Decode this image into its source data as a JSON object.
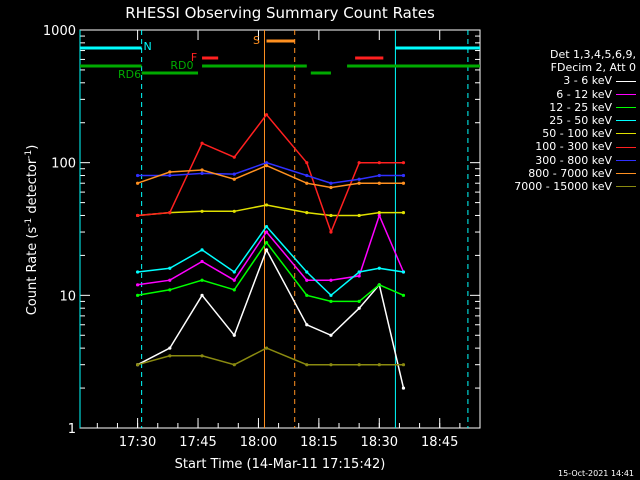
{
  "chart_data": {
    "type": "line",
    "title": "RHESSI Observing Summary Count Rates",
    "xlabel": "Start Time (14-Mar-11 17:15:42)",
    "ylabel_main": "Count Rate (s",
    "ylabel_sup1": "-1",
    "ylabel_mid": " detector",
    "ylabel_sup2": "-1",
    "ylabel_end": ")",
    "yscale": "log",
    "ylim": [
      1,
      1000
    ],
    "xlim": [
      "17:15:42",
      "18:55:00"
    ],
    "ytick_labels": [
      "1",
      "10",
      "100",
      "1000"
    ],
    "xticks": [
      {
        "t": "17:30",
        "label": "17:30"
      },
      {
        "t": "17:45",
        "label": "17:45"
      },
      {
        "t": "18:00",
        "label": "18:00"
      },
      {
        "t": "18:15",
        "label": "18:15"
      },
      {
        "t": "18:30",
        "label": "18:30"
      },
      {
        "t": "18:45",
        "label": "18:45"
      }
    ],
    "legend_header": [
      "Det 1,3,4,5,6,9,",
      "FDecim 2, Att 0"
    ],
    "series": [
      {
        "name": "3 - 6 keV",
        "color": "#ffffff",
        "x": [
          "17:30",
          "17:38",
          "17:46",
          "17:54",
          "18:02",
          "18:12",
          "18:18",
          "18:25",
          "18:30",
          "18:36"
        ],
        "y": [
          3,
          4,
          10,
          5,
          22,
          6,
          5,
          8,
          12,
          2
        ]
      },
      {
        "name": "6 - 12 keV",
        "color": "#ff00ff",
        "x": [
          "17:30",
          "17:38",
          "17:46",
          "17:54",
          "18:02",
          "18:12",
          "18:18",
          "18:25",
          "18:30",
          "18:36"
        ],
        "y": [
          12,
          13,
          18,
          13,
          30,
          13,
          13,
          14,
          40,
          15
        ]
      },
      {
        "name": "12 - 25 keV",
        "color": "#00ff00",
        "x": [
          "17:30",
          "17:38",
          "17:46",
          "17:54",
          "18:02",
          "18:12",
          "18:18",
          "18:25",
          "18:30",
          "18:36"
        ],
        "y": [
          10,
          11,
          13,
          11,
          25,
          10,
          9,
          9,
          12,
          10
        ]
      },
      {
        "name": "25 - 50 keV",
        "color": "#00ffff",
        "x": [
          "17:30",
          "17:38",
          "17:46",
          "17:54",
          "18:02",
          "18:12",
          "18:18",
          "18:25",
          "18:30",
          "18:36"
        ],
        "y": [
          15,
          16,
          22,
          15,
          33,
          15,
          10,
          15,
          16,
          15
        ]
      },
      {
        "name": "50 - 100 keV",
        "color": "#e0e000",
        "x": [
          "17:30",
          "17:38",
          "17:46",
          "17:54",
          "18:02",
          "18:12",
          "18:18",
          "18:25",
          "18:30",
          "18:36"
        ],
        "y": [
          40,
          42,
          43,
          43,
          48,
          42,
          40,
          40,
          42,
          42
        ]
      },
      {
        "name": "100 - 300 keV",
        "color": "#ff2020",
        "x": [
          "17:30",
          "17:38",
          "17:46",
          "17:54",
          "18:02",
          "18:12",
          "18:18",
          "18:25",
          "18:30",
          "18:36"
        ],
        "y": [
          40,
          42,
          140,
          110,
          230,
          100,
          30,
          100,
          100,
          100
        ]
      },
      {
        "name": "300 - 800 keV",
        "color": "#3030ff",
        "x": [
          "17:30",
          "17:38",
          "17:46",
          "17:54",
          "18:02",
          "18:12",
          "18:18",
          "18:25",
          "18:30",
          "18:36"
        ],
        "y": [
          80,
          80,
          83,
          82,
          100,
          80,
          70,
          75,
          80,
          80
        ]
      },
      {
        "name": "800 - 7000 keV",
        "color": "#ff9020",
        "x": [
          "17:30",
          "17:38",
          "17:46",
          "17:54",
          "18:02",
          "18:12",
          "18:18",
          "18:25",
          "18:30",
          "18:36"
        ],
        "y": [
          70,
          85,
          88,
          75,
          95,
          70,
          65,
          70,
          70,
          70
        ]
      },
      {
        "name": "7000 - 15000 keV",
        "color": "#8a8a10",
        "x": [
          "17:30",
          "17:38",
          "17:46",
          "17:54",
          "18:02",
          "18:12",
          "18:18",
          "18:25",
          "18:30",
          "18:36"
        ],
        "y": [
          3,
          3.5,
          3.5,
          3,
          4,
          3,
          3,
          3,
          3,
          3
        ]
      }
    ],
    "flags": [
      {
        "label": "N",
        "color": "#00ffff"
      },
      {
        "label": "RD0",
        "color": "#00aa00"
      },
      {
        "label": "RD6",
        "color": "#00aa00"
      },
      {
        "label": "F",
        "color": "#ff2020"
      },
      {
        "label": "S",
        "color": "#ff9020"
      }
    ],
    "grid": false,
    "legend_position": "right"
  },
  "footer": {
    "timestamp": "15-Oct-2021 14:41"
  }
}
